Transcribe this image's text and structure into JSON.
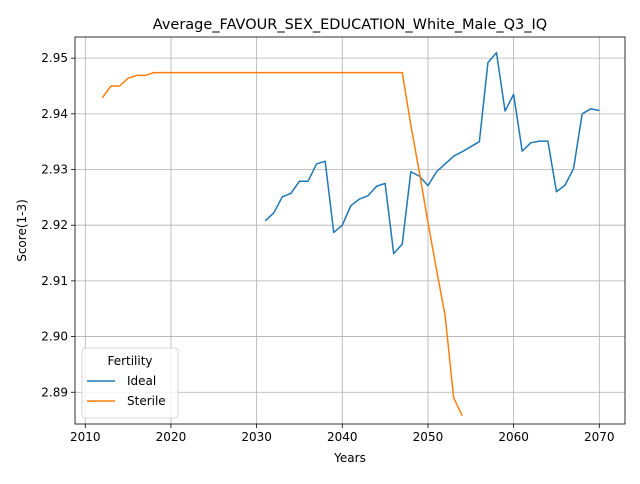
{
  "chart_data": {
    "type": "line",
    "title": "Average_FAVOUR_SEX_EDUCATION_White_Male_Q3_IQ",
    "xlabel": "Years",
    "ylabel": "Score(1-3)",
    "xlim": [
      2008.8,
      2073.0
    ],
    "ylim": [
      2.8843,
      2.9538
    ],
    "xticks": [
      2010,
      2020,
      2030,
      2040,
      2050,
      2060,
      2070
    ],
    "yticks": [
      2.89,
      2.9,
      2.91,
      2.92,
      2.93,
      2.94,
      2.95
    ],
    "ytick_labels": [
      "2.89",
      "2.90",
      "2.91",
      "2.92",
      "2.93",
      "2.94",
      "2.95"
    ],
    "grid": true,
    "legend": {
      "title": "Fertility",
      "position": "lower-left"
    },
    "series": [
      {
        "name": "Ideal",
        "color": "#1f77b4",
        "x": [
          2031,
          2032,
          2033,
          2034,
          2035,
          2036,
          2037,
          2038,
          2039,
          2040,
          2041,
          2042,
          2043,
          2044,
          2045,
          2046,
          2047,
          2048,
          2049,
          2050,
          2051,
          2052,
          2053,
          2054,
          2055,
          2056,
          2057,
          2058,
          2059,
          2060,
          2061,
          2062,
          2063,
          2064,
          2065,
          2066,
          2067,
          2068,
          2069,
          2070
        ],
        "y": [
          2.9208,
          2.9222,
          2.9251,
          2.9257,
          2.9279,
          2.9279,
          2.931,
          2.9315,
          2.9187,
          2.92,
          2.9235,
          2.9247,
          2.9253,
          2.927,
          2.9275,
          2.9149,
          2.9166,
          2.9296,
          2.9288,
          2.9271,
          2.9296,
          2.931,
          2.9324,
          2.9332,
          2.9341,
          2.935,
          2.9492,
          2.951,
          2.9405,
          2.9435,
          2.9333,
          2.9348,
          2.9351,
          2.9351,
          2.926,
          2.9272,
          2.9302,
          2.94,
          2.9409,
          2.9406
        ]
      },
      {
        "name": "Sterile",
        "color": "#ff7f0e",
        "x": [
          2012,
          2013,
          2014,
          2015,
          2016,
          2017,
          2018,
          2019,
          2020,
          2021,
          2022,
          2023,
          2024,
          2025,
          2026,
          2027,
          2028,
          2029,
          2030,
          2031,
          2032,
          2033,
          2034,
          2035,
          2036,
          2037,
          2038,
          2039,
          2040,
          2041,
          2042,
          2043,
          2044,
          2045,
          2046,
          2047,
          2048,
          2049,
          2050,
          2051,
          2052,
          2053,
          2054
        ],
        "y": [
          2.9429,
          2.945,
          2.945,
          2.9464,
          2.9469,
          2.9469,
          2.9474,
          2.9474,
          2.9474,
          2.9474,
          2.9474,
          2.9474,
          2.9474,
          2.9474,
          2.9474,
          2.9474,
          2.9474,
          2.9474,
          2.9474,
          2.9474,
          2.9474,
          2.9474,
          2.9474,
          2.9474,
          2.9474,
          2.9474,
          2.9474,
          2.9474,
          2.9474,
          2.9474,
          2.9474,
          2.9474,
          2.9474,
          2.9474,
          2.9474,
          2.9474,
          2.938,
          2.9295,
          2.9205,
          2.912,
          2.9038,
          2.889,
          2.8858
        ]
      }
    ]
  }
}
